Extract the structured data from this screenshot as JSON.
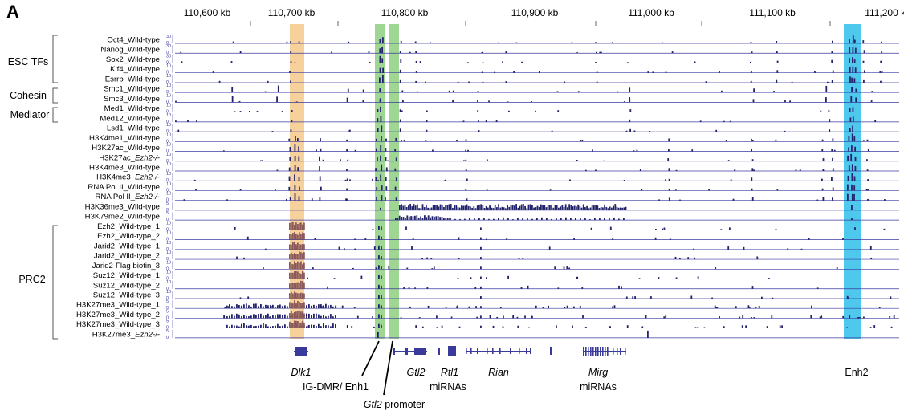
{
  "panel_letter": "A",
  "coord_ticks": [
    "110,600 kb",
    "110,700 kb",
    "110,800 kb",
    "110,900 kb",
    "111,000 kb",
    "111,100 kb",
    "111,200 kb"
  ],
  "groups": [
    {
      "label": "ESC TFs"
    },
    {
      "label": "Cohesin"
    },
    {
      "label": "Mediator"
    },
    {
      "label": "PRC2"
    }
  ],
  "tracks": [
    {
      "label": "Oct4_Wild-type",
      "scale": "30"
    },
    {
      "label": "Nanog_Wild-type",
      "scale": "30"
    },
    {
      "label": "Sox2_Wild-type",
      "scale": "30"
    },
    {
      "label": "Klf4_Wild-type",
      "scale": "10"
    },
    {
      "label": "Esrrb_Wild-type",
      "scale": "10"
    },
    {
      "label": "Smc1_Wild-type",
      "scale": "10"
    },
    {
      "label": "Smc3_Wild-type",
      "scale": "10"
    },
    {
      "label": "Med1_Wild-type",
      "scale": "10"
    },
    {
      "label": "Med12_Wild-type",
      "scale": "10"
    },
    {
      "label": "Lsd1_Wild-type",
      "scale": "10"
    },
    {
      "label": "H3K4me1_Wild-type",
      "scale": "10"
    },
    {
      "label": "H3K27ac_Wild-type",
      "scale": "10"
    },
    {
      "label": "H3K27ac_",
      "italic": "Ezh2-/-",
      "scale": "10"
    },
    {
      "label": "H3K4me3_Wild-type",
      "scale": "10"
    },
    {
      "label": "H3K4me3_",
      "italic": "Ezh2-/-",
      "scale": "10"
    },
    {
      "label": "RNA Pol II_Wild-type",
      "scale": "10"
    },
    {
      "label": "RNA Pol II_",
      "italic": "Ezh2-/-",
      "scale": "10"
    },
    {
      "label": "H3K36me3_Wild-type",
      "scale": "5"
    },
    {
      "label": "H3K79me2_Wild-type",
      "scale": "5"
    },
    {
      "label": "Ezh2_Wild-type_1",
      "scale": "10"
    },
    {
      "label": "Ezh2_Wild-type_2",
      "scale": "10"
    },
    {
      "label": "Jarid2_Wild-type_1",
      "scale": "10"
    },
    {
      "label": "Jarid2_Wild-type_2",
      "scale": "10"
    },
    {
      "label": "Jarid2-Flag biotin_3",
      "scale": "10"
    },
    {
      "label": "Suz12_Wild-type_1",
      "scale": "10"
    },
    {
      "label": "Suz12_Wild-type_2",
      "scale": "10"
    },
    {
      "label": "Suz12_Wild-type_3",
      "scale": "10"
    },
    {
      "label": "H3K27me3_Wild-type_1",
      "scale": "5"
    },
    {
      "label": "H3K27me3_Wild-type_2",
      "scale": "5"
    },
    {
      "label": "H3K27me3_Wild-type_3",
      "scale": "5"
    },
    {
      "label": "H3K27me3_",
      "italic": "Ezh2-/-",
      "scale": "5"
    }
  ],
  "scale_zero": "0",
  "annotations": {
    "dlk1": "Dlk1",
    "ig_dmr": "IG-DMR/ Enh1",
    "gtl2": "Gtl2",
    "gtl2_promoter_italic": "Gtl2",
    "gtl2_promoter_rest": " promoter",
    "rtl1": "Rtl1",
    "rtl1_mirnas": "miRNAs",
    "rian": "Rian",
    "mirg": "Mirg",
    "mirg_mirnas": "miRNAs",
    "enh2": "Enh2"
  },
  "colors": {
    "signal": "#23236b",
    "prc2_signal": "#8c5a5a",
    "baseline": "#3a3aa0",
    "highlight_dlk1": "#f6c98a",
    "highlight_igdmr": "#8fcf80",
    "highlight_enh2": "#2fc0ea",
    "gene": "#3a3a9a"
  }
}
